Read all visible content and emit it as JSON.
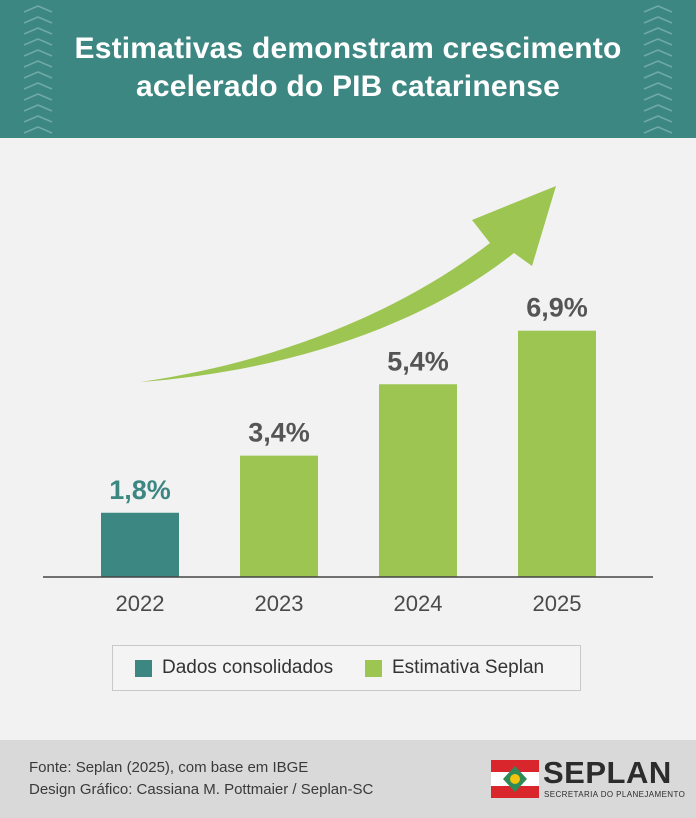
{
  "header": {
    "title_line1": "Estimativas demonstram crescimento",
    "title_line2": "acelerado do PIB catarinense"
  },
  "chart_data": {
    "type": "bar",
    "categories": [
      "2022",
      "2023",
      "2024",
      "2025"
    ],
    "values": [
      1.8,
      3.4,
      5.4,
      6.9
    ],
    "value_labels": [
      "1,8%",
      "3,4%",
      "5,4%",
      "6,9%"
    ],
    "series_kind": [
      "consolidado",
      "estimativa",
      "estimativa",
      "estimativa"
    ],
    "ylim": [
      0,
      7.2
    ],
    "grid": false,
    "legend_position": "bottom",
    "legend": [
      {
        "label": "Dados consolidados",
        "color": "#3d8783"
      },
      {
        "label": "Estimativa Seplan",
        "color": "#9dc551"
      }
    ],
    "colors": {
      "consolidado": "#3d8783",
      "estimativa": "#9dc551",
      "label_consolidado": "#3d8783",
      "label_estimativa": "#555555"
    }
  },
  "footer": {
    "source": "Fonte: Seplan (2025), com base em IBGE",
    "design": "Design Gráfico: Cassiana M. Pottmaier / Seplan-SC",
    "logo_name": "SEPLAN",
    "logo_sub": "SECRETARIA DO PLANEJAMENTO"
  },
  "colors": {
    "header": "#3d8783",
    "footer": "#d9d9d9",
    "background": "#f2f2f2",
    "arrow": "#9dc551",
    "flag_red": "#d9262c"
  },
  "icons": [
    "chevron-pattern-icon",
    "growth-arrow-icon",
    "santa-catarina-flag-icon"
  ]
}
